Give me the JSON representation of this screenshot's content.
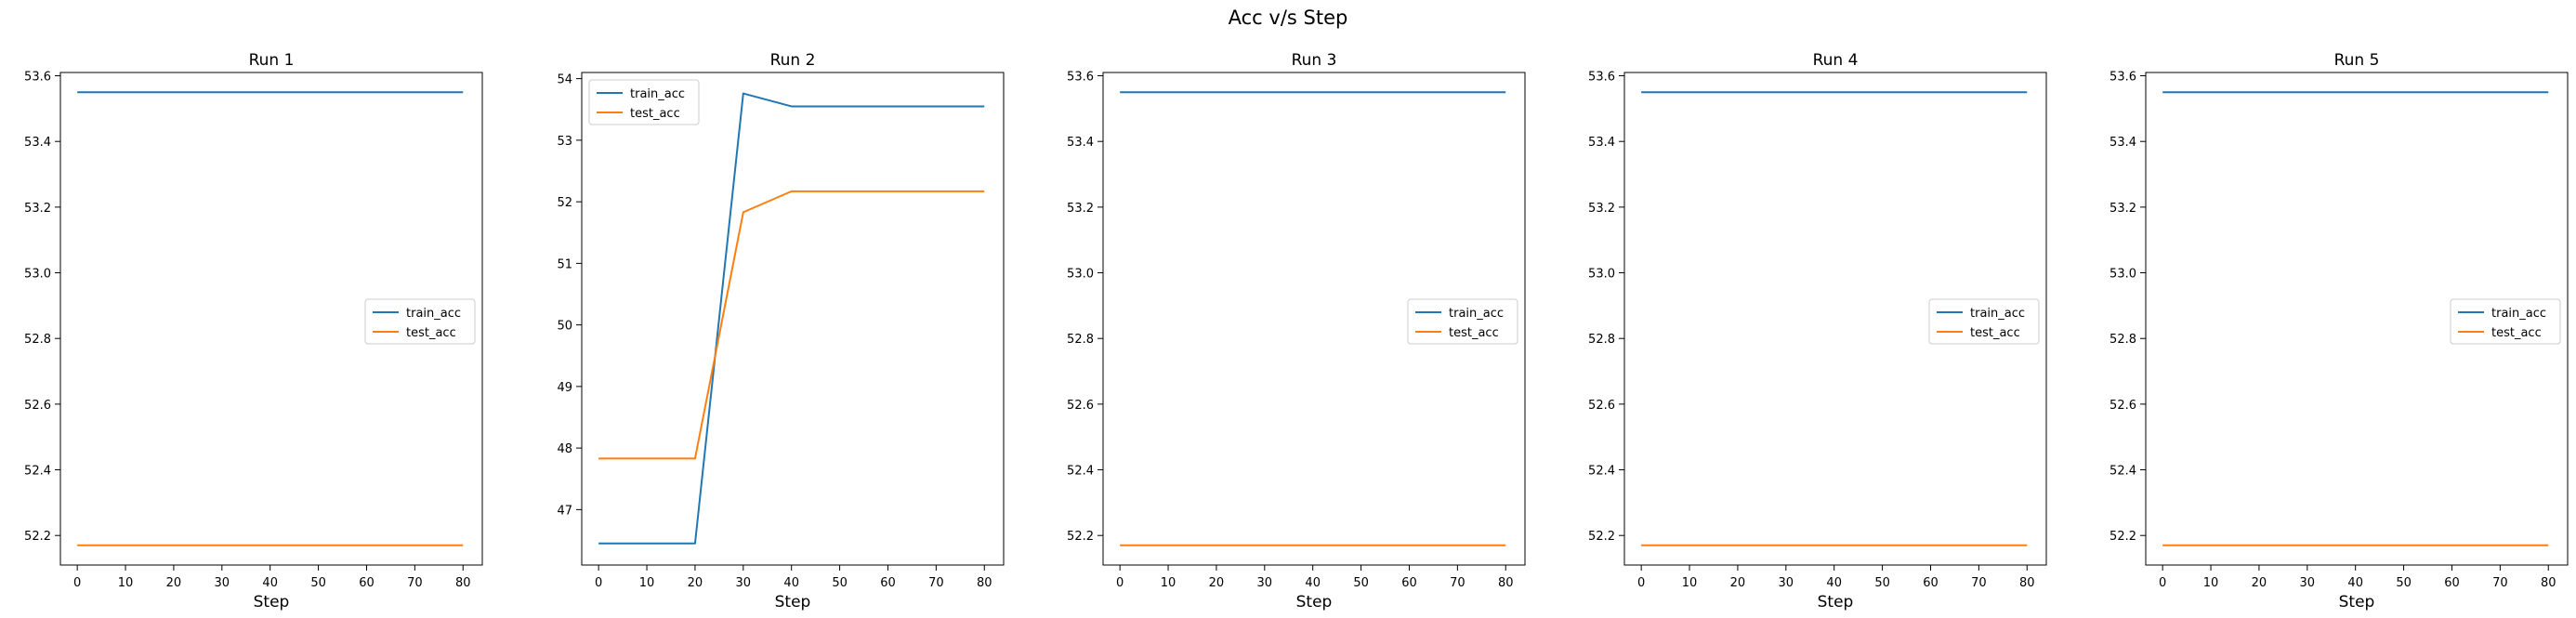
{
  "figure": {
    "title": "Acc v/s Step"
  },
  "colors": {
    "train_acc": "#1f77b4",
    "test_acc": "#ff7f0e"
  },
  "chart_data": [
    {
      "type": "line",
      "title": "Run 1",
      "xlabel": "Step",
      "ylabel": "",
      "x": [
        0,
        10,
        20,
        30,
        40,
        50,
        60,
        70,
        80
      ],
      "xlim": [
        -3.5,
        84
      ],
      "ylim": [
        52.11,
        53.61
      ],
      "xticks": [
        0,
        10,
        20,
        30,
        40,
        50,
        60,
        70,
        80
      ],
      "yticks": [
        52.2,
        52.4,
        52.6,
        52.8,
        53.0,
        53.2,
        53.4,
        53.6
      ],
      "ytick_labels": [
        "52.2",
        "52.4",
        "52.6",
        "52.8",
        "53.0",
        "53.2",
        "53.4",
        "53.6"
      ],
      "legend_position": "center-right",
      "series": [
        {
          "name": "train_acc",
          "values": [
            53.55,
            53.55,
            53.55,
            53.55,
            53.55,
            53.55,
            53.55,
            53.55,
            53.55
          ]
        },
        {
          "name": "test_acc",
          "values": [
            52.17,
            52.17,
            52.17,
            52.17,
            52.17,
            52.17,
            52.17,
            52.17,
            52.17
          ]
        }
      ]
    },
    {
      "type": "line",
      "title": "Run 2",
      "xlabel": "Step",
      "ylabel": "",
      "x": [
        0,
        10,
        20,
        30,
        40,
        50,
        60,
        70,
        80
      ],
      "xlim": [
        -3.5,
        84
      ],
      "ylim": [
        46.1,
        54.1
      ],
      "xticks": [
        0,
        10,
        20,
        30,
        40,
        50,
        60,
        70,
        80
      ],
      "yticks": [
        47,
        48,
        49,
        50,
        51,
        52,
        53,
        54
      ],
      "ytick_labels": [
        "47",
        "48",
        "49",
        "50",
        "51",
        "52",
        "53",
        "54"
      ],
      "legend_position": "top-left",
      "series": [
        {
          "name": "train_acc",
          "values": [
            46.45,
            46.45,
            46.45,
            53.76,
            53.55,
            53.55,
            53.55,
            53.55,
            53.55
          ]
        },
        {
          "name": "test_acc",
          "values": [
            47.83,
            47.83,
            47.83,
            51.83,
            52.17,
            52.17,
            52.17,
            52.17,
            52.17
          ]
        }
      ]
    },
    {
      "type": "line",
      "title": "Run 3",
      "xlabel": "Step",
      "ylabel": "",
      "x": [
        0,
        10,
        20,
        30,
        40,
        50,
        60,
        70,
        80
      ],
      "xlim": [
        -3.5,
        84
      ],
      "ylim": [
        52.11,
        53.61
      ],
      "xticks": [
        0,
        10,
        20,
        30,
        40,
        50,
        60,
        70,
        80
      ],
      "yticks": [
        52.2,
        52.4,
        52.6,
        52.8,
        53.0,
        53.2,
        53.4,
        53.6
      ],
      "ytick_labels": [
        "52.2",
        "52.4",
        "52.6",
        "52.8",
        "53.0",
        "53.2",
        "53.4",
        "53.6"
      ],
      "legend_position": "center-right",
      "series": [
        {
          "name": "train_acc",
          "values": [
            53.55,
            53.55,
            53.55,
            53.55,
            53.55,
            53.55,
            53.55,
            53.55,
            53.55
          ]
        },
        {
          "name": "test_acc",
          "values": [
            52.17,
            52.17,
            52.17,
            52.17,
            52.17,
            52.17,
            52.17,
            52.17,
            52.17
          ]
        }
      ]
    },
    {
      "type": "line",
      "title": "Run 4",
      "xlabel": "Step",
      "ylabel": "",
      "x": [
        0,
        10,
        20,
        30,
        40,
        50,
        60,
        70,
        80
      ],
      "xlim": [
        -3.5,
        84
      ],
      "ylim": [
        52.11,
        53.61
      ],
      "xticks": [
        0,
        10,
        20,
        30,
        40,
        50,
        60,
        70,
        80
      ],
      "yticks": [
        52.2,
        52.4,
        52.6,
        52.8,
        53.0,
        53.2,
        53.4,
        53.6
      ],
      "ytick_labels": [
        "52.2",
        "52.4",
        "52.6",
        "52.8",
        "53.0",
        "53.2",
        "53.4",
        "53.6"
      ],
      "legend_position": "center-right",
      "series": [
        {
          "name": "train_acc",
          "values": [
            53.55,
            53.55,
            53.55,
            53.55,
            53.55,
            53.55,
            53.55,
            53.55,
            53.55
          ]
        },
        {
          "name": "test_acc",
          "values": [
            52.17,
            52.17,
            52.17,
            52.17,
            52.17,
            52.17,
            52.17,
            52.17,
            52.17
          ]
        }
      ]
    },
    {
      "type": "line",
      "title": "Run 5",
      "xlabel": "Step",
      "ylabel": "",
      "x": [
        0,
        10,
        20,
        30,
        40,
        50,
        60,
        70,
        80
      ],
      "xlim": [
        -3.5,
        84
      ],
      "ylim": [
        52.11,
        53.61
      ],
      "xticks": [
        0,
        10,
        20,
        30,
        40,
        50,
        60,
        70,
        80
      ],
      "yticks": [
        52.2,
        52.4,
        52.6,
        52.8,
        53.0,
        53.2,
        53.4,
        53.6
      ],
      "ytick_labels": [
        "52.2",
        "52.4",
        "52.6",
        "52.8",
        "53.0",
        "53.2",
        "53.4",
        "53.6"
      ],
      "legend_position": "center-right",
      "series": [
        {
          "name": "train_acc",
          "values": [
            53.55,
            53.55,
            53.55,
            53.55,
            53.55,
            53.55,
            53.55,
            53.55,
            53.55
          ]
        },
        {
          "name": "test_acc",
          "values": [
            52.17,
            52.17,
            52.17,
            52.17,
            52.17,
            52.17,
            52.17,
            52.17,
            52.17
          ]
        }
      ]
    }
  ]
}
